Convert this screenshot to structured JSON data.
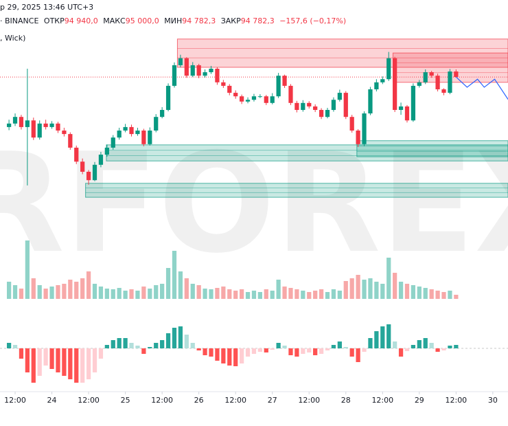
{
  "chart_data": {
    "type": "candlestick",
    "header": {
      "datetime": "р 29, 2025 13:46 UTC+3",
      "source": "· BINANCE",
      "open_label": "ОТКР",
      "open": "94 940,0",
      "high_label": "МАКС",
      "high": "95 000,0",
      "low_label": "МИН",
      "low": "94 782,3",
      "close_label": "ЗАКР",
      "close": "94 782,3",
      "change": "−157,6 (−0,17%)",
      "indicator": ", Wick)"
    },
    "watermark": "RFOREX.com",
    "up_color": "#089981",
    "down_color": "#f23645",
    "xlim": [
      -1.47,
      81.48
    ],
    "ylim": [
      90300,
      96200
    ],
    "xticks": [
      {
        "value": 1,
        "label": "12:00"
      },
      {
        "value": 7,
        "label": "24"
      },
      {
        "value": 13,
        "label": "12:00"
      },
      {
        "value": 19,
        "label": "25"
      },
      {
        "value": 25,
        "label": "12:00"
      },
      {
        "value": 31,
        "label": "26"
      },
      {
        "value": 37,
        "label": "12:00"
      },
      {
        "value": 43,
        "label": "27"
      },
      {
        "value": 49,
        "label": "12:00"
      },
      {
        "value": 55,
        "label": "28"
      },
      {
        "value": 61,
        "label": "12:00"
      },
      {
        "value": 67,
        "label": "29"
      },
      {
        "value": 73,
        "label": "12:00"
      },
      {
        "value": 79,
        "label": "30"
      }
    ],
    "open": [
      93350,
      93450,
      93640,
      93350,
      93540,
      93050,
      93450,
      93350,
      93450,
      93250,
      93150,
      92760,
      92360,
      92070,
      91830,
      92270,
      92560,
      92760,
      93050,
      93250,
      93350,
      93150,
      93250,
      92860,
      93250,
      93640,
      93840,
      94530,
      95120,
      95320,
      94820,
      95120,
      94820,
      94920,
      95020,
      94630,
      94530,
      94330,
      94230,
      94080,
      94130,
      94230,
      94230,
      94040,
      94230,
      94820,
      94530,
      94040,
      93840,
      94040,
      93940,
      93840,
      93640,
      93840,
      94130,
      94330,
      93640,
      93250,
      92860,
      93740,
      94430,
      94630,
      94720,
      95320,
      93840,
      93940,
      93540,
      94530,
      94630,
      94920,
      94820,
      94430,
      94330,
      94940
    ],
    "high": [
      93560,
      93740,
      93700,
      95020,
      93620,
      93540,
      93560,
      93520,
      93500,
      93330,
      93200,
      92820,
      92450,
      92120,
      92350,
      92640,
      92850,
      93120,
      93330,
      93440,
      93420,
      93330,
      93300,
      93340,
      93720,
      93920,
      94600,
      95200,
      95420,
      95350,
      95210,
      95160,
      95000,
      95100,
      95060,
      94700,
      94580,
      94400,
      94280,
      94200,
      94300,
      94290,
      94270,
      94320,
      94900,
      94850,
      94580,
      94100,
      94120,
      94090,
      94000,
      93890,
      93900,
      94200,
      94420,
      94380,
      93700,
      93290,
      93800,
      94500,
      94720,
      94800,
      95500,
      95360,
      94050,
      93980,
      94600,
      94700,
      95000,
      94960,
      94880,
      94460,
      95010,
      95000
    ],
    "low": [
      93260,
      93380,
      93280,
      91680,
      92980,
      92990,
      93280,
      93300,
      93180,
      93080,
      92700,
      92290,
      92000,
      91700,
      91800,
      92200,
      92500,
      92700,
      92990,
      93200,
      93080,
      93100,
      92800,
      92820,
      93200,
      93600,
      93800,
      94480,
      95060,
      94760,
      94780,
      94750,
      94770,
      94870,
      94560,
      94470,
      94260,
      94160,
      94010,
      94030,
      94080,
      94180,
      93980,
      94000,
      94180,
      94470,
      93980,
      93770,
      93790,
      93880,
      93780,
      93580,
      93600,
      93790,
      94080,
      93580,
      93190,
      92780,
      92800,
      93690,
      94370,
      94580,
      94670,
      93780,
      93700,
      93480,
      93500,
      94480,
      94580,
      94760,
      94370,
      94260,
      94290,
      94782.3
    ],
    "close": [
      93450,
      93640,
      93350,
      93540,
      93050,
      93450,
      93350,
      93450,
      93250,
      93150,
      92760,
      92360,
      92070,
      91830,
      92270,
      92560,
      92760,
      93050,
      93250,
      93350,
      93150,
      93250,
      92860,
      93250,
      93640,
      93840,
      94530,
      95120,
      95320,
      94820,
      95120,
      94820,
      94920,
      95020,
      94630,
      94530,
      94330,
      94230,
      94080,
      94130,
      94230,
      94230,
      94040,
      94230,
      94820,
      94530,
      94040,
      93840,
      94040,
      93940,
      93840,
      93640,
      93840,
      94130,
      94330,
      93640,
      93250,
      92860,
      93740,
      94430,
      94630,
      94720,
      95320,
      93840,
      93940,
      93540,
      94530,
      94630,
      94920,
      94820,
      94430,
      94330,
      94940,
      94782.3
    ],
    "zones": [
      {
        "from": 27.5,
        "top": 95870,
        "bottom": 95060,
        "color": "#f23645"
      },
      {
        "from": 62.7,
        "top": 95470,
        "bottom": 94630,
        "color": "#f23645"
      },
      {
        "from": 15.9,
        "top": 92840,
        "bottom": 92380,
        "color": "#089981"
      },
      {
        "from": 56.8,
        "top": 92960,
        "bottom": 92500,
        "color": "#089981"
      },
      {
        "from": 12.5,
        "top": 91740,
        "bottom": 91340,
        "color": "#089981"
      }
    ],
    "projection": {
      "color": "#2962ff",
      "x": [
        73,
        74.8,
        76.5,
        77.6,
        79.3,
        81.5
      ],
      "y": [
        94782.3,
        94490,
        94720,
        94490,
        94720,
        94140
      ]
    },
    "volume_panel": {
      "type": "bar",
      "ylim": [
        0,
        90
      ],
      "up_color": "#8fd3c8",
      "down_color": "#f7a8a8",
      "values": [
        25,
        20,
        15,
        85,
        30,
        20,
        15,
        18,
        20,
        22,
        28,
        25,
        30,
        40,
        22,
        18,
        15,
        14,
        16,
        12,
        14,
        12,
        18,
        15,
        20,
        22,
        45,
        70,
        40,
        30,
        22,
        20,
        15,
        14,
        16,
        18,
        14,
        12,
        14,
        10,
        12,
        10,
        14,
        12,
        28,
        18,
        16,
        14,
        12,
        10,
        12,
        14,
        10,
        14,
        12,
        26,
        30,
        35,
        28,
        30,
        25,
        22,
        60,
        38,
        25,
        22,
        20,
        18,
        16,
        14,
        12,
        10,
        12,
        6
      ]
    },
    "oscillator_panel": {
      "type": "histogram",
      "ylim": [
        -60,
        60
      ],
      "colors": [
        "#26a69a",
        "#b2dfdb",
        "#ffcdd2",
        "#ff5252"
      ],
      "values": [
        8,
        5,
        -15,
        -35,
        -50,
        -40,
        -25,
        -30,
        -35,
        -40,
        -45,
        -50,
        -50,
        -45,
        -35,
        -15,
        5,
        12,
        15,
        15,
        8,
        4,
        -8,
        2,
        8,
        12,
        22,
        30,
        32,
        20,
        8,
        -3,
        -10,
        -12,
        -18,
        -22,
        -25,
        -26,
        -22,
        -12,
        -8,
        -5,
        -6,
        -2,
        8,
        4,
        -10,
        -12,
        -8,
        -6,
        -10,
        -8,
        -3,
        5,
        10,
        2,
        -12,
        -20,
        -5,
        15,
        25,
        32,
        35,
        10,
        -12,
        -4,
        5,
        12,
        15,
        8,
        -5,
        -3,
        4,
        5
      ]
    }
  }
}
